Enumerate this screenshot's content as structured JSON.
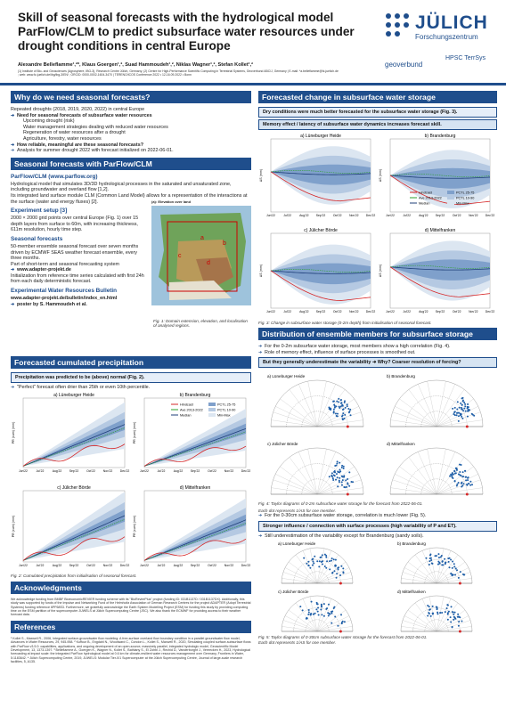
{
  "header": {
    "title": "Skill of seasonal forecasts with the hydrological model ParFlow/CLM to predict subsurface water resources under drought conditions in central Europe",
    "authors": "Alexandre Belleflamme¹,²*, Klaus Goergen¹,², Suad Hammoudeh¹,², Niklas Wagner¹,², Stefan Kollet¹,²",
    "affiliations": "(1) Institute of Bio- and Geosciences (Agrosphere, IBG-3), Research Centre Jülich, Germany; (2) Centre for High-Performance Scientific Computing in Terrestrial Systems, Geoverbund ABC/J, Germany | E-mail: *a.belleflamme@fz-juelich.de ; web: www.fz-juelich.de/ibg/ibg-3/EN/ ; ORCID: 0000-0002-1604-3470 | TERENO/ICOS Conference 2022 • 12-16.09.2022 • Bonn"
  },
  "logos": {
    "juelich": "JÜLICH",
    "juelich_sub": "Forschungszentrum",
    "geoverbund": "geoverbund",
    "hpsc": "HPSC TerrSys"
  },
  "left": {
    "why": {
      "heading": "Why do we need seasonal forecasts?",
      "intro": "Repeated droughts (2018, 2019, 2020, 2022) in central Europe",
      "b1": "Need for seasonal forecasts of subsurface water resources",
      "items": [
        "Upcoming drought (risk)",
        "Water management strategies dealing with reduced water resources",
        "Regeneration of water resources after a drought",
        "Agriculture, forestry, water resources"
      ],
      "b2": "How reliable, meaningful are these seasonal forecasts?",
      "b3": "Analysis for summer drought 2022 with forecast initialized on 2022-06-01."
    },
    "sim": {
      "heading": "Seasonal forecasts with ParFlow/CLM",
      "pf_title": "ParFlow/CLM (www.parflow.org)",
      "pf_text": "Hydrological model that simulates 3D/3D hydrological processes in the saturated and unsaturated zone, including groundwater and overland flow [1,2].",
      "pf_text2": "Its integrated land surface module CLM (Common Land Model) allows for a representation of the interactions at the surface (water and energy fluxes) [2].",
      "exp_title": "Experiment setup [3]",
      "exp_text": "2000 × 2000 grid points over central Europe (Fig. 1) over 15 depth layers from surface to 60m, with increasing thickness, 611m resolution, hourly time step.",
      "fc_title": "Seasonal forecasts",
      "fc_text": "50-member ensemble seasonal forecast over seven months driven by ECMWF SEAS weather forecast ensemble, every three months.",
      "fc_text2": "Part of short-term and seasonal forecasting system",
      "fc_link": "www.adapter-projekt.de",
      "fc_text3": "Initialization from reference time series calculated with first 24h from each daily deterministic forecast.",
      "ew_title": "Experimental Water Resources Bulletin",
      "ew_link": "www.adapter-projekt.de/bulletin/index_en.html",
      "ew_poster": "poster by S. Hammoudeh et al.",
      "map_label": "(a): Elevation over land",
      "map_caption": "Fig. 1: Domain extension, elevation, and localisation of analysed regions.",
      "map_letters": [
        "a",
        "b",
        "c",
        "d"
      ]
    },
    "precip": {
      "heading": "Forecasted cumulated precipitation",
      "box": "Precipitation was predicted to be (above) normal (Fig. 2).",
      "note": "\"Perfect\" forecast often drier than 25th or even 10th percentile.",
      "plots": [
        "a) Lüneburger Heide",
        "b) Brandenburg",
        "c) Jülicher Börde",
        "d) Mittelfranken"
      ],
      "ylabel": "PR (cum) (mm)",
      "xticks": [
        "Jun'22",
        "Jul'22",
        "Aug'22",
        "Sep'22",
        "Oct'22",
        "Nov'22",
        "Dec'22"
      ],
      "legend": [
        "Hindcast",
        "Ave 2013-2022",
        "Median",
        "PCTL 25-75",
        "PCTL 10-90",
        "Min-Max"
      ],
      "caption": "Fig. 2: Cumulated precipitation from initialisation of seasonal forecast."
    },
    "ack": {
      "heading": "Acknowledgments",
      "text": "We acknowledge funding from BMBF BioeconomicREVIER funding scheme with its \"BioRevierPlus\" project (funding ID: 031B1137D / 031B1137DX). Additionally, this study was supported by funds of the Impulse and Networking Fund of the Helmholtz Association of German Research Centres for the project ADAPTER (Adopt Terrestrial Systems) funding reference 6PF68S3. Furthermore, we gratefully acknowledge the Earth System Modelling Project (ESM) for funding this study by providing computing time on the ESM partition of the supercomputer JUWELS at Jülich Supercomputing Centre (JSC). We also thank the ECMWF for providing access to their weather forecast data."
    },
    "refs": {
      "heading": "References",
      "text": "¹ Kollet S., Maxwell R., 2006, Integrated surface-groundwater flow modeling: A free-surface overland flow boundary condition in a parallel groundwater flow model, Advances in Water Resources, 29, 945-958. ² Kuffour B., Engdahl N., Woodward C., Condon L., Kollet S., Maxwell R., 2020, Simulating coupled surface-subsurface flows with ParFlow v3.5.0: capabilities, applications, and ongoing development of an open-source, massively parallel, integrated hydrologic model, Geoscientific Model Development, 13, 1373-1397. ³ Belleflamme A., Goergen K., Wagner N., Kollet S., Bathiany S., El Zohbi J., Rechid D., Vanderborght J., Vereecken H., 2023, Hydrological forecasting at impact scale: the integrated ParFlow hydrological model at 0.6 km for climate-resilient water resources management over Germany, Frontiers in Water, 5:1183642. ⁴ Jülich Supercomputing Centre, 2019, JUWELS: Modular Tier-0/1 Supercomputer at the Jülich Supercomputing Centre, Journal of large-scale research facilities, 5, A135."
    }
  },
  "right": {
    "fc_change": {
      "heading": "Forecasted change in subsurface water storage",
      "box1": "Dry conditions were much better forecasted for the subsurface water storage (Fig. 3).",
      "box2": "Memory effect / latency of subsurface water dynamics increases forecast skill.",
      "plots": [
        "a) Lüneburger Heide",
        "b) Brandenburg",
        "c) Jülicher Börde",
        "d) Mittelfranken"
      ],
      "ylabel": "ΔS (mm)",
      "xticks": [
        "Jun'22",
        "Jul'22",
        "Aug'22",
        "Sep'22",
        "Oct'22",
        "Nov'22",
        "Dec'22"
      ],
      "legend": [
        "Hindcast",
        "Ave 2013-2022",
        "Median",
        "PCTL 25-75",
        "PCTL 10-90",
        "Min-Max"
      ],
      "caption": "Fig. 3: Change in subsurface water storage (0-2m depth) from initialisation of seasonal forecast."
    },
    "dist": {
      "heading": "Distribution of ensemble members for subsurface storage",
      "b1": "For the 0-2m subsurface water storage, most members show a high correlation (Fig. 4).",
      "b2": "Role of memory effect, influence of surface processes is smoothed out.",
      "box": "But they generally underestimate the variability ➜ Why? Coarser resolution of forcing?",
      "plots": [
        "a) Lüneburger Heide",
        "b) Brandenburg",
        "c) Jülicher Börde",
        "d) Mittelfranken"
      ],
      "caption4a": "Fig. 4: Taylor diagrams of 0-2m subsurface water storage for the forecast from 2022-06-01.",
      "caption4b": "Each dot represents 1/AS for one member.",
      "b3": "For the 0-30cm subsurface water storage, correlation is much lower (Fig. 5).",
      "box2": "Stronger influence / connection with surface processes (high variability of P and ET).",
      "b4": "Still underestimation of the variability except for Brandenburg (sandy soils).",
      "plots5": [
        "a) Lüneburger Heide",
        "b) Brandenburg",
        "c) Jülicher Börde",
        "d) Mittelfranken"
      ],
      "caption5a": "Fig. 5: Taylor diagrams of 0-30cm subsurface water storage for the forecast from 2022-06-01.",
      "caption5b": "Each dot represents 1/AS for one member."
    }
  },
  "colors": {
    "accent": "#1f4e8c",
    "band_outer": "#dce6f1",
    "band_mid": "#b5c9e2",
    "band_inner": "#7fa0cb",
    "hindcast": "#d62728",
    "median": "#1f3f7a",
    "average": "#2ca02c"
  }
}
